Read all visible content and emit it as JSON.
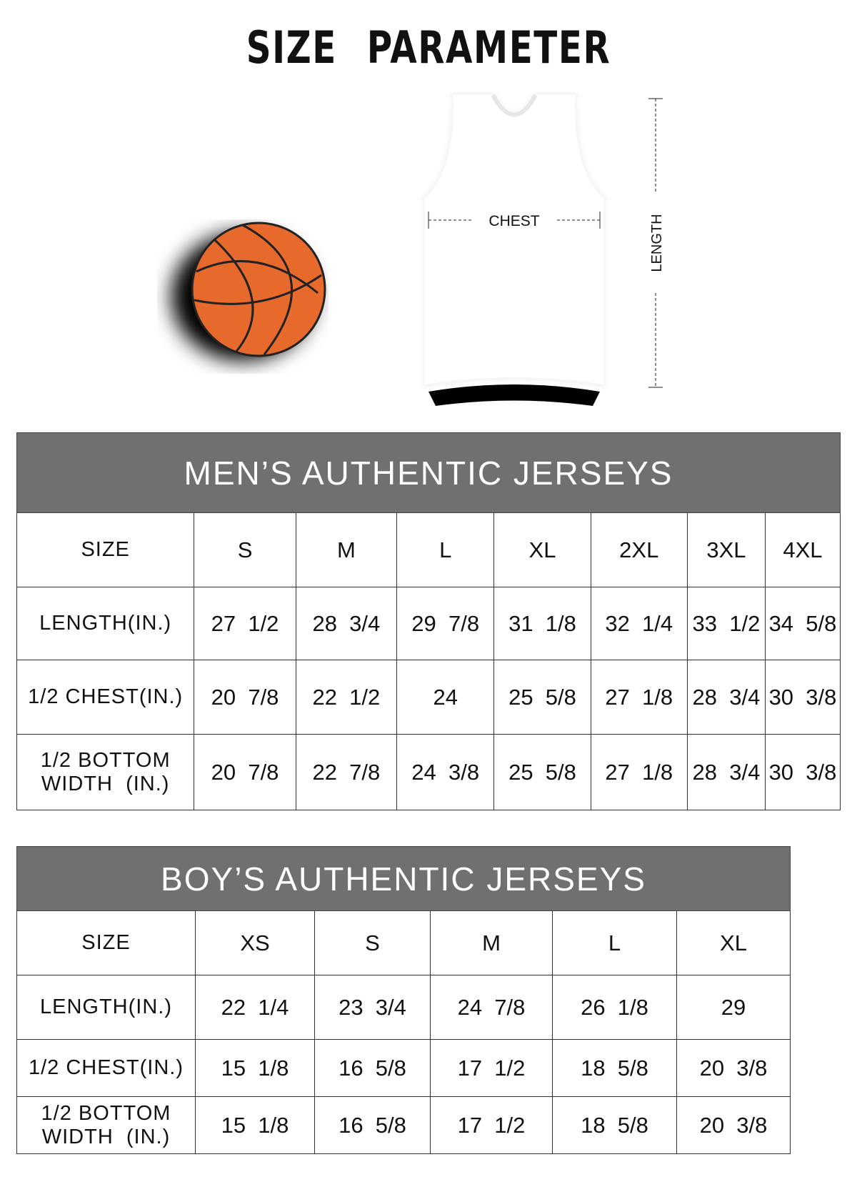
{
  "title": "SIZE PARAMETER",
  "diagram": {
    "chest_label": "CHEST",
    "length_label": "LENGTH",
    "ball_color": "#e8692c"
  },
  "men": {
    "title": "MEN’S AUTHENTIC JERSEYS",
    "columns": [
      "SIZE",
      "S",
      "M",
      "L",
      "XL",
      "2XL",
      "3XL",
      "4XL"
    ],
    "rows": [
      {
        "label": "LENGTH(IN.)",
        "values": [
          "27  1/2",
          "28  3/4",
          "29  7/8",
          "31  1/8",
          "32  1/4",
          "33  1/2",
          "34  5/8"
        ]
      },
      {
        "label": "1/2 CHEST(IN.)",
        "values": [
          "20  7/8",
          "22  1/2",
          "24",
          "25  5/8",
          "27  1/8",
          "28  3/4",
          "30  3/8"
        ]
      },
      {
        "label": "1/2 BOTTOM WIDTH  (IN.)",
        "values": [
          "20  7/8",
          "22  7/8",
          "24  3/8",
          "25  5/8",
          "27  1/8",
          "28  3/4",
          "30  3/8"
        ]
      }
    ]
  },
  "boys": {
    "title": "BOY’S AUTHENTIC JERSEYS",
    "columns": [
      "SIZE",
      "XS",
      "S",
      "M",
      "L",
      "XL"
    ],
    "rows": [
      {
        "label": "LENGTH(IN.)",
        "values": [
          "22  1/4",
          "23  3/4",
          "24  7/8",
          "26  1/8",
          "29"
        ]
      },
      {
        "label": "1/2 CHEST(IN.)",
        "values": [
          "15  1/8",
          "16  5/8",
          "17  1/2",
          "18  5/8",
          "20  3/8"
        ]
      },
      {
        "label": "1/2 BOTTOM WIDTH  (IN.)",
        "values": [
          "15  1/8",
          "16  5/8",
          "17  1/2",
          "18  5/8",
          "20  3/8"
        ]
      }
    ]
  }
}
